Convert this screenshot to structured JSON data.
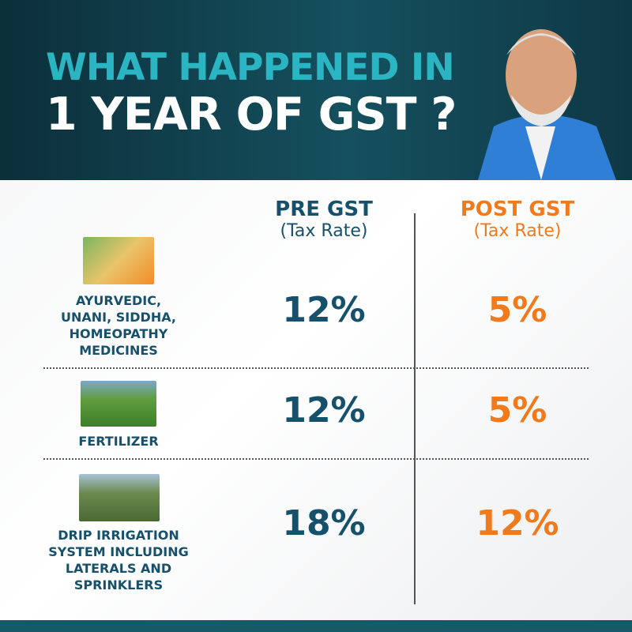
{
  "header": {
    "title_line1": "WHAT HAPPENED IN",
    "title_line2": "1 YEAR OF GST ?"
  },
  "columns": [
    {
      "title": "PRE GST",
      "subtitle": "(Tax Rate)"
    },
    {
      "title": "POST GST",
      "subtitle": "(Tax Rate)"
    }
  ],
  "rows": [
    {
      "label": [
        "AYURVEDIC,",
        "UNANI, SIDDHA,",
        "HOMEOPATHY",
        "MEDICINES"
      ],
      "pre": "12%",
      "post": "5%"
    },
    {
      "label": [
        "FERTILIZER"
      ],
      "pre": "12%",
      "post": "5%"
    },
    {
      "label": [
        "DRIP IRRIGATION",
        "SYSTEM INCLUDING",
        "LATERALS AND",
        "SPRINKLERS"
      ],
      "pre": "18%",
      "post": "12%"
    }
  ]
}
